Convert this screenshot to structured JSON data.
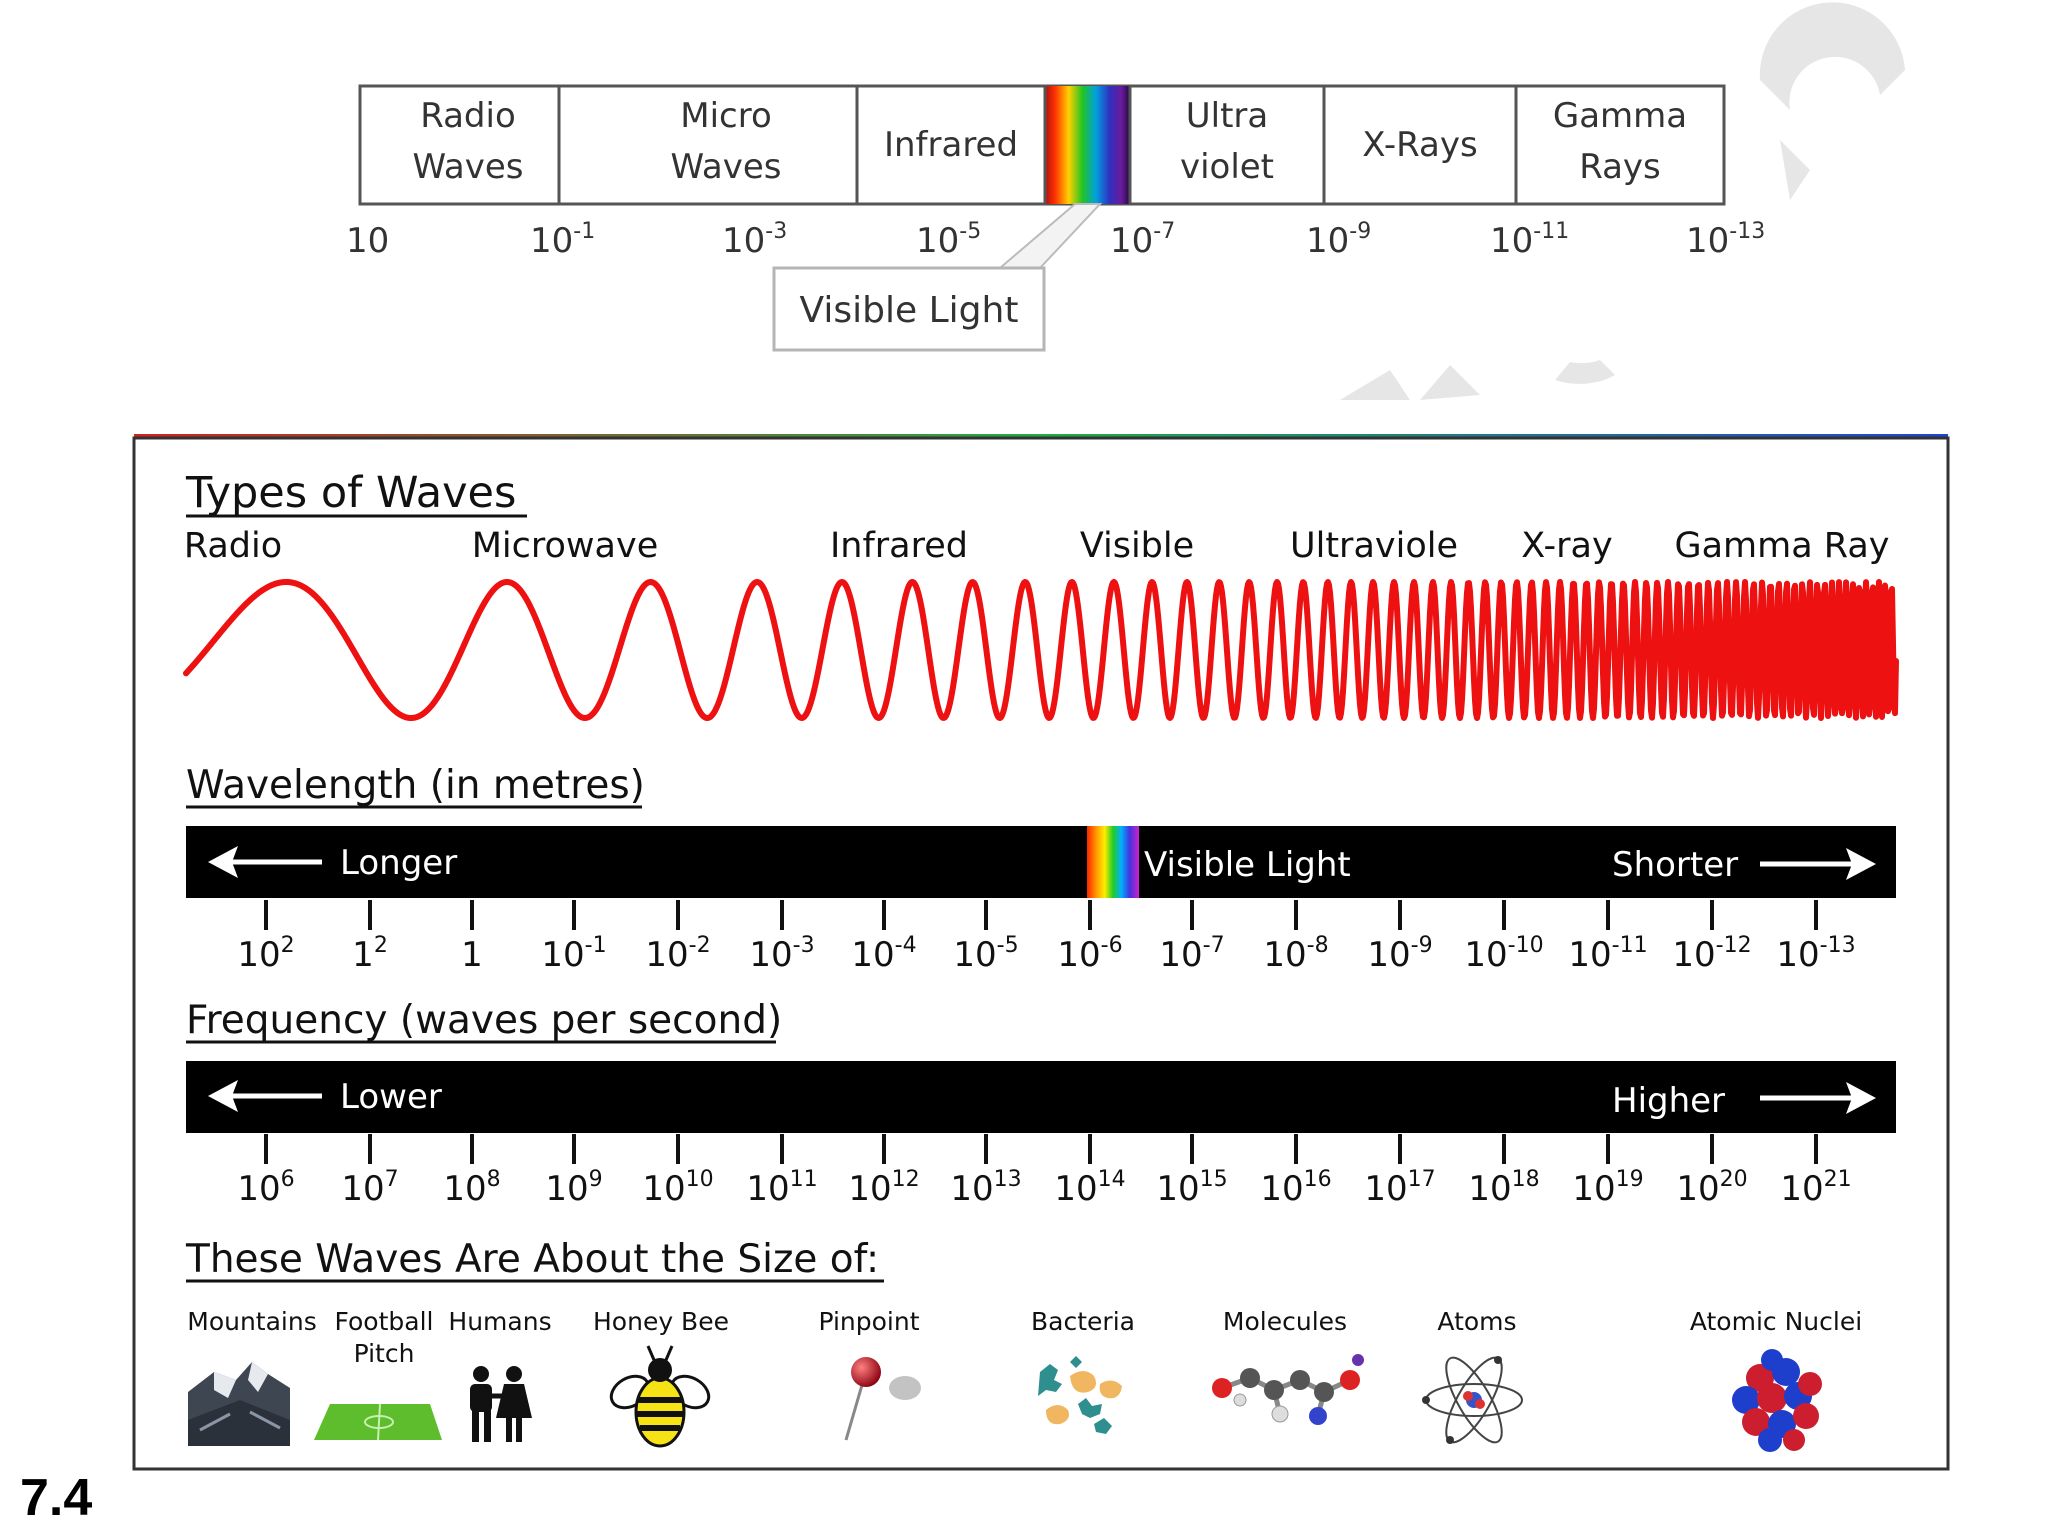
{
  "figure_number": "7.4",
  "top_diagram": {
    "bands": [
      {
        "line1": "Radio",
        "line2": "Waves"
      },
      {
        "line1": "Micro",
        "line2": "Waves"
      },
      {
        "line1": "Infrared",
        "line2": ""
      },
      {
        "line1": "",
        "line2": ""
      },
      {
        "line1": "Ultra",
        "line2": "violet"
      },
      {
        "line1": "X-Rays",
        "line2": ""
      },
      {
        "line1": "Gamma",
        "line2": "Rays"
      }
    ],
    "scale": [
      {
        "base": "10",
        "exp": ""
      },
      {
        "base": "10",
        "exp": "-1"
      },
      {
        "base": "10",
        "exp": "-3"
      },
      {
        "base": "10",
        "exp": "-5"
      },
      {
        "base": "10",
        "exp": "-7"
      },
      {
        "base": "10",
        "exp": "-9"
      },
      {
        "base": "10",
        "exp": "-11"
      },
      {
        "base": "10",
        "exp": "-13"
      }
    ],
    "visible_callout": "Visible Light"
  },
  "main_panel": {
    "types_title": "Types of Waves",
    "wave_types": [
      "Radio",
      "Microwave",
      "Infrared",
      "Visible",
      "Ultraviole",
      "X-ray",
      "Gamma Ray"
    ],
    "wavelength_title": "Wavelength (in metres)",
    "wavelength_bar": {
      "left": "Longer",
      "middle": "Visible Light",
      "right": "Shorter"
    },
    "wavelength_ticks": [
      {
        "base": "10",
        "exp": "2"
      },
      {
        "base": "1",
        "exp": "2"
      },
      {
        "base": "1",
        "exp": ""
      },
      {
        "base": "10",
        "exp": "-1"
      },
      {
        "base": "10",
        "exp": "-2"
      },
      {
        "base": "10",
        "exp": "-3"
      },
      {
        "base": "10",
        "exp": "-4"
      },
      {
        "base": "10",
        "exp": "-5"
      },
      {
        "base": "10",
        "exp": "-6"
      },
      {
        "base": "10",
        "exp": "-7"
      },
      {
        "base": "10",
        "exp": "-8"
      },
      {
        "base": "10",
        "exp": "-9"
      },
      {
        "base": "10",
        "exp": "-10"
      },
      {
        "base": "10",
        "exp": "-11"
      },
      {
        "base": "10",
        "exp": "-12"
      },
      {
        "base": "10",
        "exp": "-13"
      }
    ],
    "frequency_title": "Frequency (waves per second)",
    "frequency_bar": {
      "left": "Lower",
      "right": "Higher"
    },
    "frequency_ticks": [
      {
        "base": "10",
        "exp": "6"
      },
      {
        "base": "10",
        "exp": "7"
      },
      {
        "base": "10",
        "exp": "8"
      },
      {
        "base": "10",
        "exp": "9"
      },
      {
        "base": "10",
        "exp": "10"
      },
      {
        "base": "10",
        "exp": "11"
      },
      {
        "base": "10",
        "exp": "12"
      },
      {
        "base": "10",
        "exp": "13"
      },
      {
        "base": "10",
        "exp": "14"
      },
      {
        "base": "10",
        "exp": "15"
      },
      {
        "base": "10",
        "exp": "16"
      },
      {
        "base": "10",
        "exp": "17"
      },
      {
        "base": "10",
        "exp": "18"
      },
      {
        "base": "10",
        "exp": "19"
      },
      {
        "base": "10",
        "exp": "20"
      },
      {
        "base": "10",
        "exp": "21"
      }
    ],
    "size_title": "These Waves Are About the Size of:",
    "size_items": [
      {
        "line1": "Mountains",
        "line2": "",
        "icon": "mountain-icon"
      },
      {
        "line1": "Football",
        "line2": "Pitch",
        "icon": "football-pitch-icon"
      },
      {
        "line1": "Humans",
        "line2": "",
        "icon": "humans-icon"
      },
      {
        "line1": "Honey Bee",
        "line2": "",
        "icon": "honey-bee-icon"
      },
      {
        "line1": "Pinpoint",
        "line2": "",
        "icon": "pin-icon"
      },
      {
        "line1": "Bacteria",
        "line2": "",
        "icon": "bacteria-icon"
      },
      {
        "line1": "Molecules",
        "line2": "",
        "icon": "molecule-icon"
      },
      {
        "line1": "Atoms",
        "line2": "",
        "icon": "atom-icon"
      },
      {
        "line1": "Atomic Nuclei",
        "line2": "",
        "icon": "atomic-nucleus-icon"
      }
    ]
  },
  "colors": {
    "wave": "#ee1111",
    "bar": "#000000",
    "frame": "#333333"
  }
}
